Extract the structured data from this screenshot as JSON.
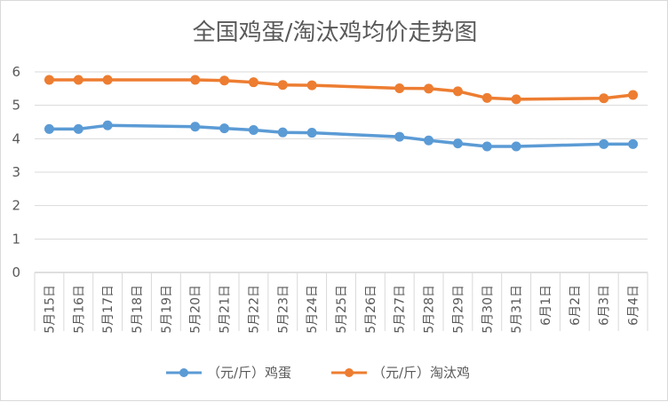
{
  "chart_data": {
    "type": "line",
    "title": "全国鸡蛋/淘汰鸡均价走势图",
    "xlabel": "",
    "ylabel": "",
    "ylim": [
      0,
      6
    ],
    "yticks": [
      "0",
      "1",
      "2",
      "3",
      "4",
      "5",
      "6"
    ],
    "grid": true,
    "legend_position": "bottom",
    "categories": [
      "5月15日",
      "5月16日",
      "5月17日",
      "5月18日",
      "5月19日",
      "5月20日",
      "5月21日",
      "5月22日",
      "5月23日",
      "5月24日",
      "5月25日",
      "5月26日",
      "5月27日",
      "5月28日",
      "5月29日",
      "5月30日",
      "5月31日",
      "6月1日",
      "6月2日",
      "6月3日",
      "6月4日"
    ],
    "series": [
      {
        "name": "（元/斤）鸡蛋",
        "color": "#5b9bd5",
        "values": [
          4.29,
          4.29,
          4.4,
          null,
          null,
          4.36,
          4.31,
          4.26,
          4.19,
          4.18,
          null,
          null,
          4.06,
          3.95,
          3.86,
          3.77,
          3.77,
          null,
          null,
          3.84,
          3.84
        ]
      },
      {
        "name": "（元/斤）淘汰鸡",
        "color": "#ed7d31",
        "values": [
          5.76,
          5.76,
          5.76,
          null,
          null,
          5.76,
          5.74,
          5.69,
          5.61,
          5.6,
          null,
          null,
          5.51,
          5.5,
          5.42,
          5.22,
          5.18,
          null,
          null,
          5.21,
          5.31
        ]
      }
    ]
  }
}
